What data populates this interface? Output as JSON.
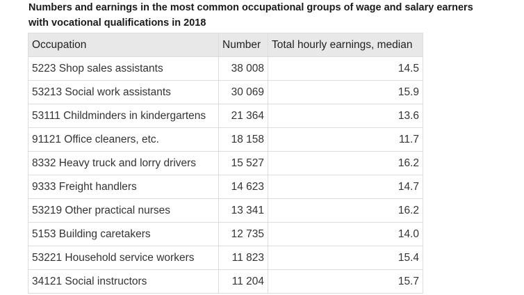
{
  "caption": "Numbers and earnings in the most common occupational groups of wage and salary earners with vocational qualifications in 2018",
  "table": {
    "headers": [
      "Occupation",
      "Number",
      "Total hourly earnings, median"
    ],
    "rows": [
      {
        "occupation": "5223 Shop sales assistants",
        "number": "38 008",
        "earnings": "14.5"
      },
      {
        "occupation": "53213 Social work assistants",
        "number": "30 069",
        "earnings": "15.9"
      },
      {
        "occupation": "53111 Childminders in kindergartens",
        "number": "21 364",
        "earnings": "13.6"
      },
      {
        "occupation": "91121 Office cleaners, etc.",
        "number": "18 158",
        "earnings": "11.7"
      },
      {
        "occupation": "8332 Heavy truck and lorry drivers",
        "number": "15 527",
        "earnings": "16.2"
      },
      {
        "occupation": "9333 Freight handlers",
        "number": "14 623",
        "earnings": "14.7"
      },
      {
        "occupation": "53219 Other practical nurses",
        "number": "13 341",
        "earnings": "16.2"
      },
      {
        "occupation": "5153 Building caretakers",
        "number": "12 735",
        "earnings": "14.0"
      },
      {
        "occupation": "53221 Household service workers",
        "number": "11 823",
        "earnings": "15.4"
      },
      {
        "occupation": "34121 Social instructors",
        "number": "11 204",
        "earnings": "15.7"
      }
    ]
  }
}
